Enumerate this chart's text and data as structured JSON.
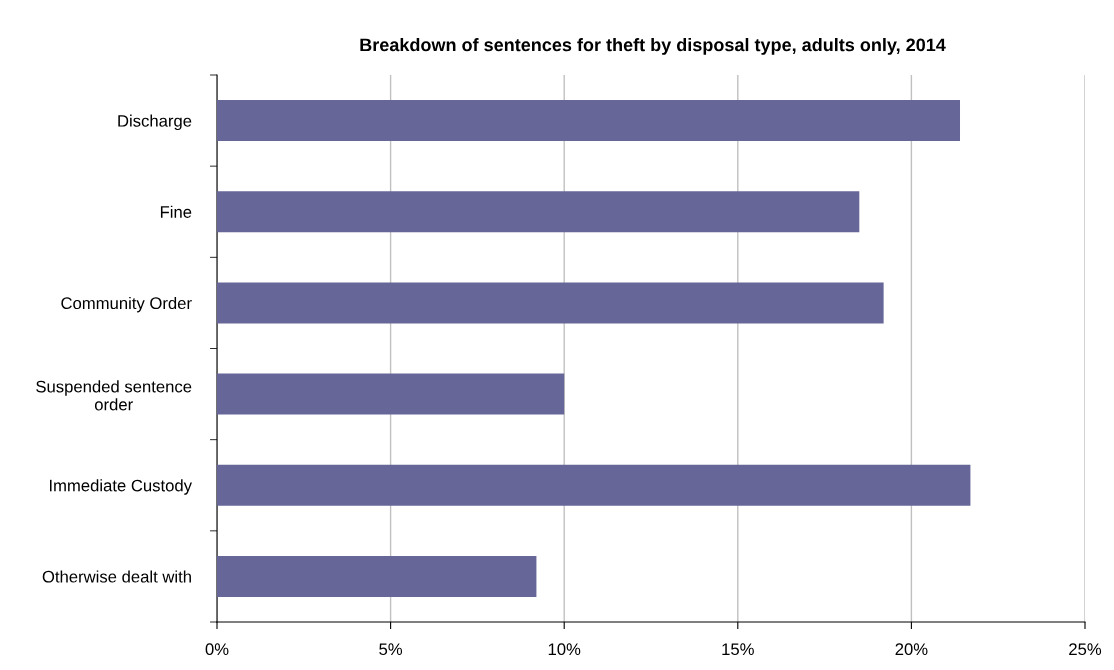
{
  "chart_data": {
    "type": "bar",
    "orientation": "horizontal",
    "title": "Breakdown of sentences for theft by disposal type, adults only, 2014",
    "categories": [
      "Discharge",
      "Fine",
      "Community Order",
      "Suspended sentence\norder",
      "Immediate Custody",
      "Otherwise dealt with"
    ],
    "values": [
      21.4,
      18.5,
      19.2,
      10.0,
      21.7,
      9.2
    ],
    "color": "#666699",
    "xlim": [
      0,
      25
    ],
    "xticks": [
      {
        "value": 0,
        "label": "0%"
      },
      {
        "value": 5,
        "label": "5%"
      },
      {
        "value": 10,
        "label": "10%"
      },
      {
        "value": 15,
        "label": "15%"
      },
      {
        "value": 20,
        "label": "20%"
      },
      {
        "value": 25,
        "label": "25%"
      }
    ],
    "grid": "x",
    "legend": false
  }
}
